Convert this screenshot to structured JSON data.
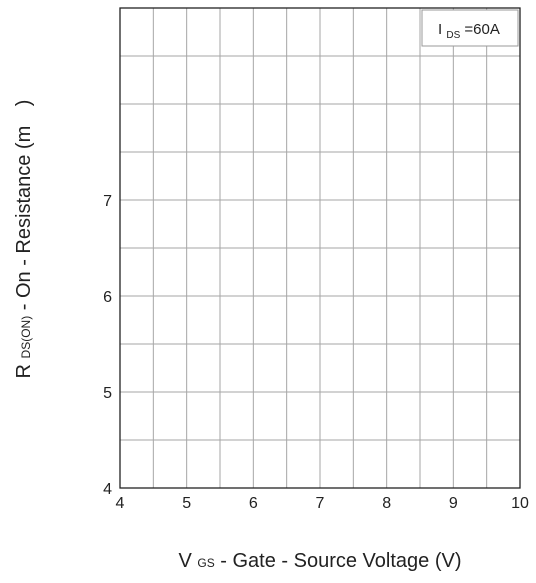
{
  "chart_data": {
    "type": "line",
    "title": "",
    "x_axis": {
      "label_main": "V",
      "label_sub": "GS",
      "label_rest": " - Gate - Source Voltage (V)",
      "range": [
        4,
        10
      ],
      "ticks": [
        "4",
        "5",
        "6",
        "7",
        "8",
        "9",
        "10"
      ]
    },
    "y_axis": {
      "label_main": "R",
      "label_sub": "DS(ON)",
      "label_rest": " - On - Resistance (m",
      "label_end": ")",
      "range": [
        4,
        9
      ],
      "ticks": [
        "4",
        "5",
        "6",
        "7"
      ]
    },
    "grid": true,
    "series": [],
    "annotation": {
      "main": "I",
      "sub": "DS",
      "rest": "=60A"
    }
  }
}
